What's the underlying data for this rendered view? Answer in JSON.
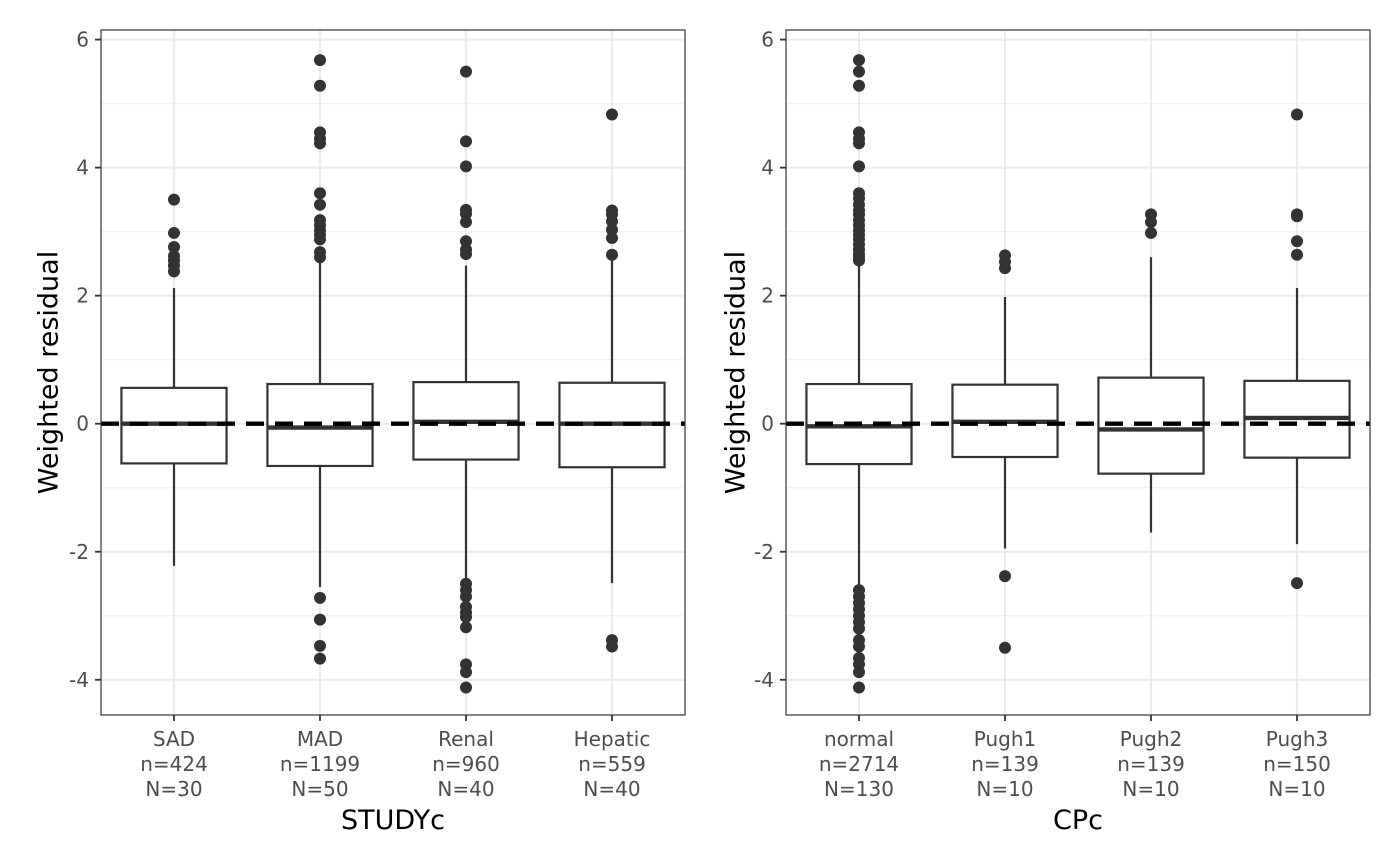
{
  "chart_data": [
    {
      "type": "box",
      "xlabel": "STUDYc",
      "ylabel": "Weighted residual",
      "ylim": [
        -4.55,
        6.15
      ],
      "yticks": [
        -4,
        -2,
        0,
        2,
        4,
        6
      ],
      "ytick_labels": [
        "-4",
        "-2",
        "0",
        "2",
        "4",
        "6"
      ],
      "reference_line": 0,
      "grid": true,
      "categories": [
        {
          "label": "SAD",
          "n_label": "n=424",
          "N_label": "N=30",
          "q1": -0.62,
          "median": 0.0,
          "q3": 0.56,
          "whisker_low": -2.22,
          "whisker_high": 2.12,
          "outliers": [
            3.5,
            2.98,
            2.76,
            2.62,
            2.55,
            2.47,
            2.38
          ]
        },
        {
          "label": "MAD",
          "n_label": "n=1199",
          "N_label": "N=50",
          "q1": -0.66,
          "median": -0.06,
          "q3": 0.62,
          "whisker_low": -2.55,
          "whisker_high": 2.55,
          "outliers": [
            5.68,
            5.28,
            4.55,
            4.45,
            4.38,
            3.6,
            3.42,
            3.18,
            3.1,
            3.02,
            2.95,
            2.88,
            2.68,
            2.6,
            -2.72,
            -3.06,
            -3.47,
            -3.67
          ]
        },
        {
          "label": "Renal",
          "n_label": "n=960",
          "N_label": "N=40",
          "q1": -0.56,
          "median": 0.03,
          "q3": 0.65,
          "whisker_low": -2.42,
          "whisker_high": 2.47,
          "outliers": [
            5.5,
            4.41,
            4.02,
            3.34,
            3.28,
            3.15,
            2.85,
            2.72,
            2.65,
            -2.5,
            -2.6,
            -2.7,
            -2.86,
            -2.95,
            -3.02,
            -3.18,
            -3.76,
            -3.88,
            -4.12
          ]
        },
        {
          "label": "Hepatic",
          "n_label": "n=559",
          "N_label": "N=40",
          "q1": -0.68,
          "median": 0.0,
          "q3": 0.64,
          "whisker_low": -2.49,
          "whisker_high": 2.55,
          "outliers": [
            4.83,
            3.33,
            3.27,
            3.16,
            3.03,
            2.9,
            2.64,
            -3.38,
            -3.48
          ]
        }
      ]
    },
    {
      "type": "box",
      "xlabel": "CPc",
      "ylabel": "Weighted residual",
      "ylim": [
        -4.55,
        6.15
      ],
      "yticks": [
        -4,
        -2,
        0,
        2,
        4,
        6
      ],
      "ytick_labels": [
        "-4",
        "-2",
        "0",
        "2",
        "4",
        "6"
      ],
      "reference_line": 0,
      "grid": true,
      "categories": [
        {
          "label": "normal",
          "n_label": "n=2714",
          "N_label": "N=130",
          "q1": -0.63,
          "median": -0.04,
          "q3": 0.62,
          "whisker_low": -2.55,
          "whisker_high": 2.5,
          "outliers": [
            5.68,
            5.5,
            5.28,
            4.55,
            4.45,
            4.38,
            4.02,
            3.6,
            3.52,
            3.42,
            3.33,
            3.27,
            3.18,
            3.1,
            3.02,
            2.95,
            2.88,
            2.8,
            2.72,
            2.65,
            2.6,
            2.55,
            -2.6,
            -2.7,
            -2.8,
            -2.9,
            -3.0,
            -3.1,
            -3.2,
            -3.38,
            -3.48,
            -3.66,
            -3.76,
            -3.88,
            -4.12
          ]
        },
        {
          "label": "Pugh1",
          "n_label": "n=139",
          "N_label": "N=10",
          "q1": -0.52,
          "median": 0.03,
          "q3": 0.61,
          "whisker_low": -1.95,
          "whisker_high": 1.98,
          "outliers": [
            2.63,
            2.53,
            2.43,
            -2.38,
            -3.5
          ]
        },
        {
          "label": "Pugh2",
          "n_label": "n=139",
          "N_label": "N=10",
          "q1": -0.78,
          "median": -0.09,
          "q3": 0.72,
          "whisker_low": -1.7,
          "whisker_high": 2.6,
          "outliers": [
            3.27,
            3.15,
            2.98
          ]
        },
        {
          "label": "Pugh3",
          "n_label": "n=150",
          "N_label": "N=10",
          "q1": -0.53,
          "median": 0.09,
          "q3": 0.67,
          "whisker_low": -1.88,
          "whisker_high": 2.12,
          "outliers": [
            4.83,
            3.27,
            3.24,
            2.85,
            2.64,
            -2.49
          ]
        }
      ]
    }
  ]
}
